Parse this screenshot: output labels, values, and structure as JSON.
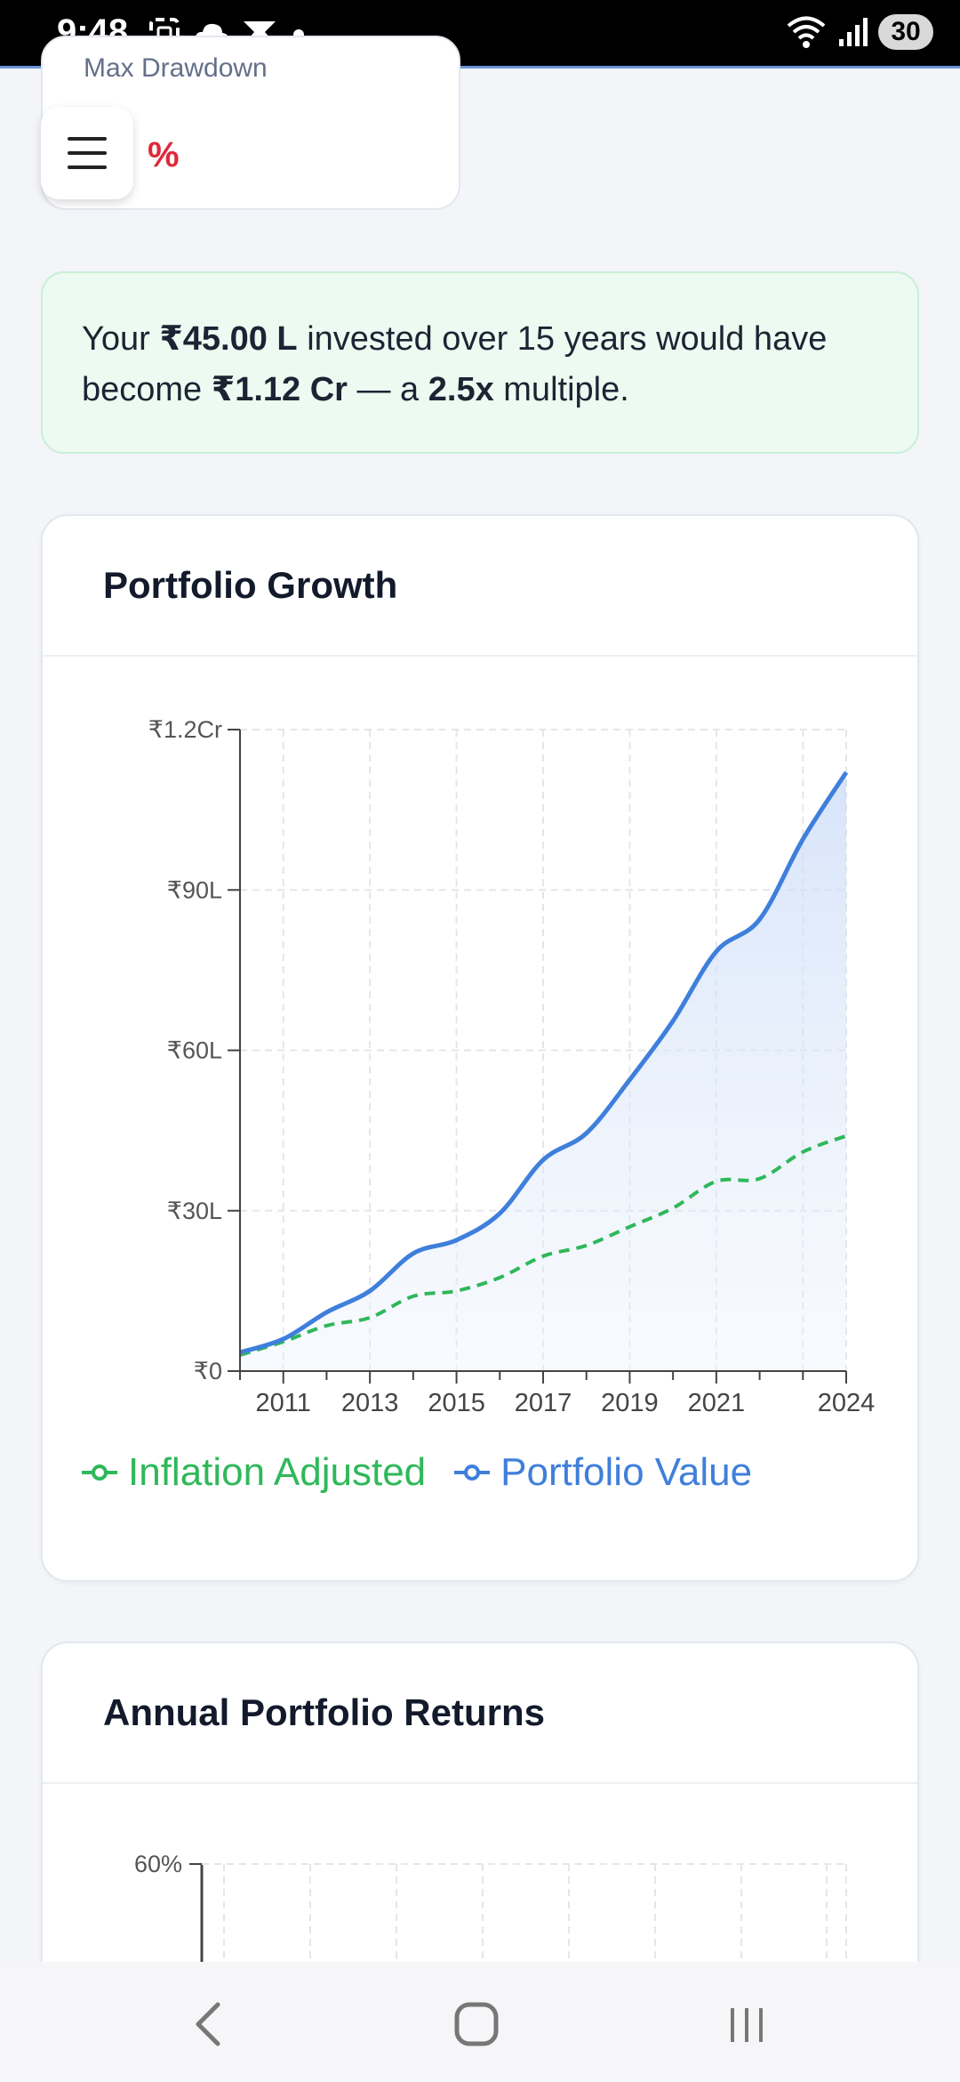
{
  "status_bar": {
    "time": "9:48",
    "battery": "30",
    "icons": [
      "screenshot-icon",
      "cloud-icon",
      "app-notification-icon",
      "dot-icon",
      "wifi-icon",
      "signal-icon"
    ]
  },
  "metric_card": {
    "label": "Max Drawdown",
    "value": "%"
  },
  "menu": {
    "icon": "hamburger-menu-icon"
  },
  "summary": {
    "prefix": "Your ",
    "invested": "₹45.00 L",
    "middle1": " invested over 15 years would have become ",
    "final_value": "₹1.12 Cr",
    "middle2": " — a ",
    "multiple": "2.5x",
    "suffix": " multiple."
  },
  "growth_card": {
    "title": "Portfolio Growth"
  },
  "returns_card": {
    "title": "Annual Portfolio Returns",
    "y_tick_top": "60%"
  },
  "colors": {
    "portfolio": "#3f7fdc",
    "inflation": "#2fb85a",
    "axis": "#444444",
    "grid": "#e4e6ea"
  },
  "chart_data": [
    {
      "type": "line",
      "title": "Portfolio Growth",
      "xlabel": "",
      "ylabel": "",
      "x": [
        2010,
        2011,
        2012,
        2013,
        2014,
        2015,
        2016,
        2017,
        2018,
        2019,
        2020,
        2021,
        2022,
        2023,
        2024
      ],
      "x_tick_values": [
        2011,
        2013,
        2015,
        2017,
        2019,
        2021,
        2024
      ],
      "x_tick_labels": [
        "2011",
        "2013",
        "2015",
        "2017",
        "2019",
        "2021",
        "2024"
      ],
      "y_tick_values": [
        0,
        3000000,
        6000000,
        9000000,
        12000000
      ],
      "y_tick_labels": [
        "₹0",
        "₹30L",
        "₹60L",
        "₹90L",
        "₹1.2Cr"
      ],
      "xlim": [
        2010,
        2024
      ],
      "ylim": [
        0,
        12000000
      ],
      "grid": true,
      "legend": "bottom",
      "series": [
        {
          "name": "Inflation Adjusted",
          "style": "dashed",
          "values": [
            300000,
            550000,
            850000,
            1000000,
            1400000,
            1500000,
            1750000,
            2150000,
            2350000,
            2700000,
            3050000,
            3550000,
            3600000,
            4100000,
            4400000
          ]
        },
        {
          "name": "Portfolio Value",
          "style": "solid",
          "fill": true,
          "values": [
            350000,
            600000,
            1100000,
            1500000,
            2200000,
            2450000,
            2950000,
            3950000,
            4450000,
            5450000,
            6550000,
            7850000,
            8450000,
            9950000,
            11200000
          ]
        }
      ]
    }
  ]
}
